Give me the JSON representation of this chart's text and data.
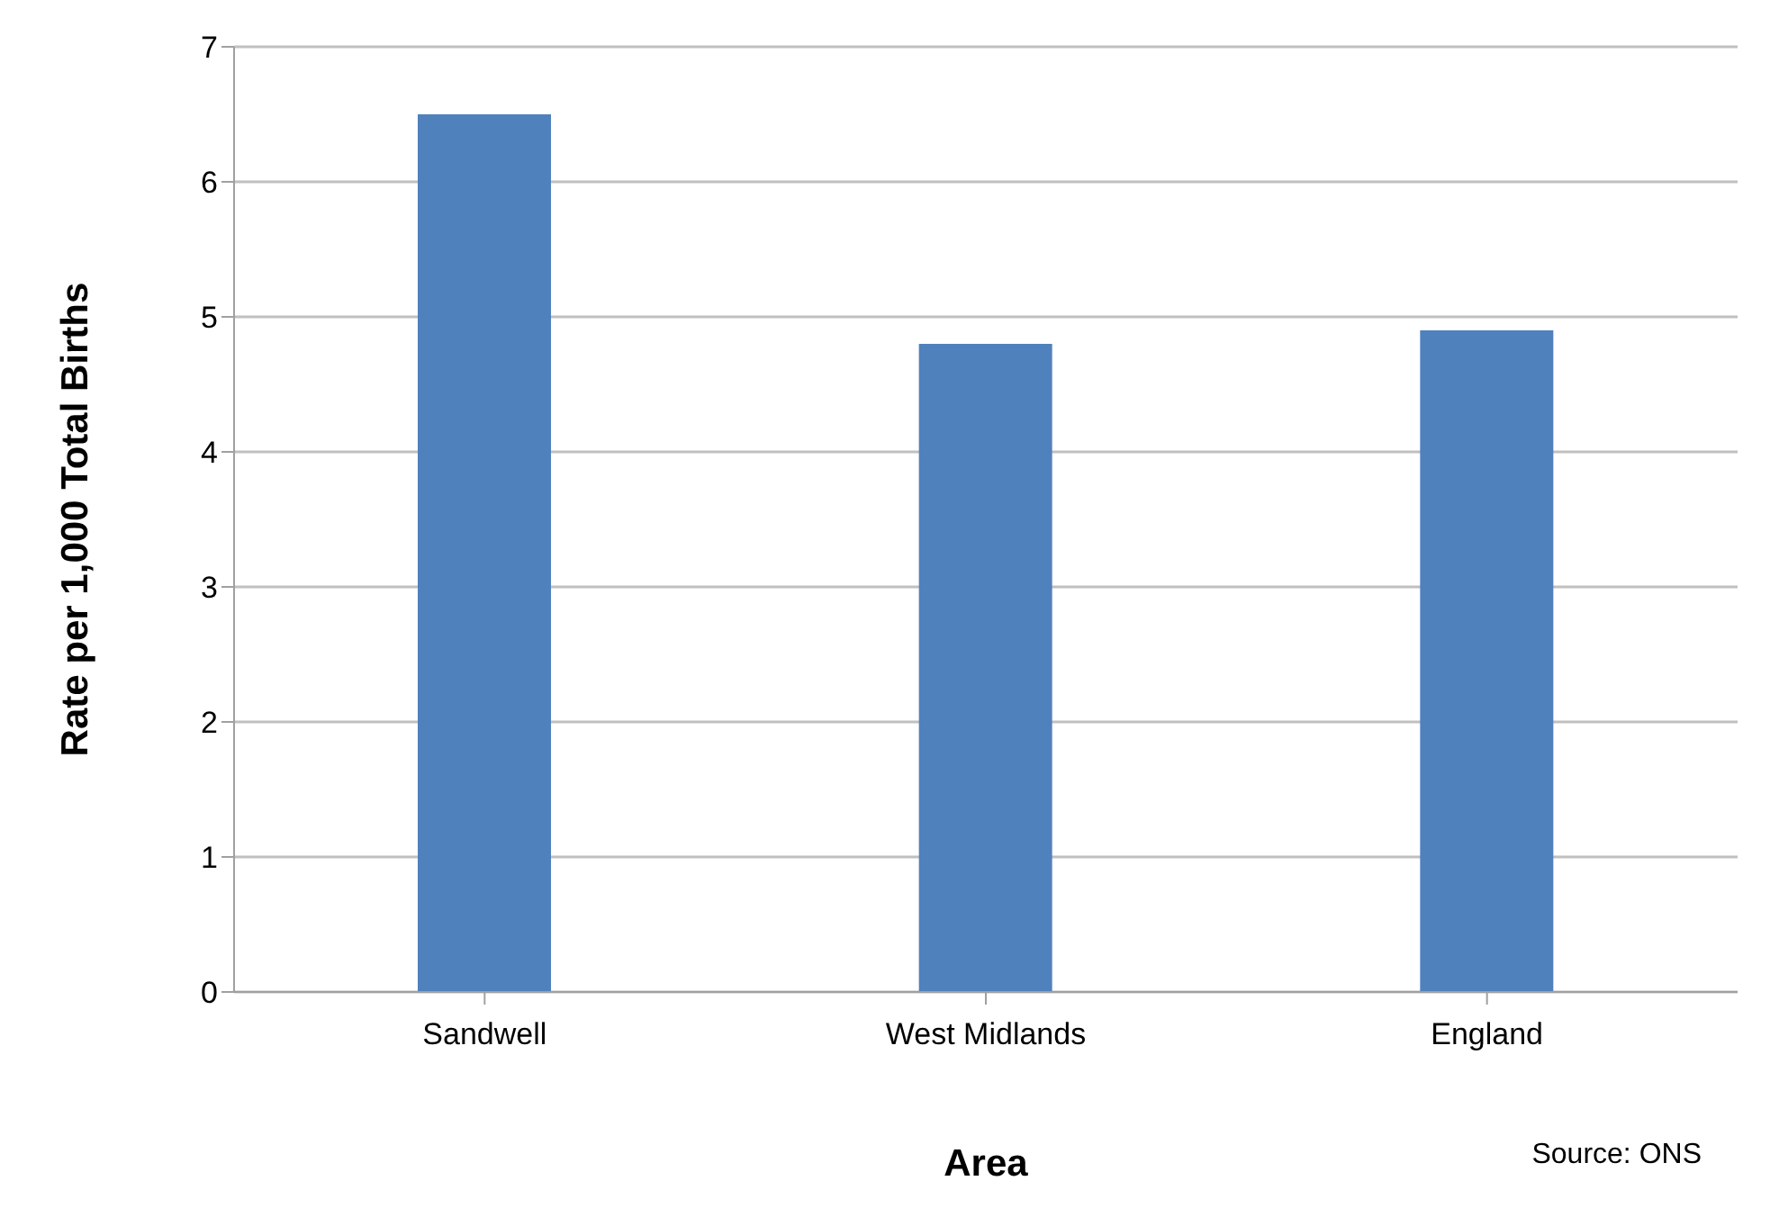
{
  "chart_data": {
    "type": "bar",
    "xlabel": "Area",
    "ylabel": "Rate per 1,000 Total Births",
    "categories": [
      "Sandwell",
      "West Midlands",
      "England"
    ],
    "values": [
      6.5,
      4.8,
      4.9
    ],
    "color": "#4f81bd",
    "ylim": [
      0,
      7
    ],
    "yticks": [
      0,
      1,
      2,
      3,
      4,
      5,
      6,
      7
    ],
    "grid": "y",
    "legend": false,
    "annotations": [
      "Source: ONS"
    ]
  }
}
